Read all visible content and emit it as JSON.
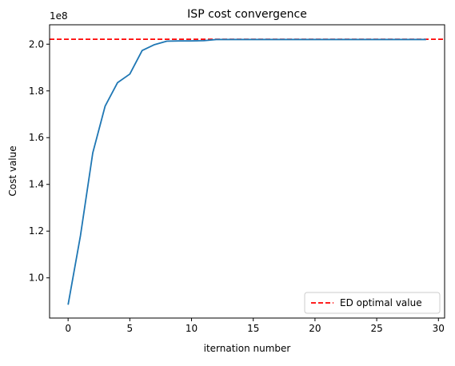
{
  "chart_data": {
    "type": "line",
    "title": "ISP cost convergence",
    "xlabel": "iternation number",
    "ylabel": "Cost value",
    "y_scale_text": "1e8",
    "xlim": [
      -1.5,
      30.5
    ],
    "ylim": [
      0.828,
      2.083
    ],
    "x_ticks": [
      0,
      5,
      10,
      15,
      20,
      25,
      30
    ],
    "y_ticks": [
      1.0,
      1.2,
      1.4,
      1.6,
      1.8,
      2.0
    ],
    "y_tick_labels": [
      "1.0",
      "1.2",
      "1.4",
      "1.6",
      "1.8",
      "2.0"
    ],
    "x_tick_labels": [
      "0",
      "5",
      "10",
      "15",
      "20",
      "25",
      "30"
    ],
    "grid": false,
    "legend_position": "bottom-right",
    "series": [
      {
        "color": "#1f77b4",
        "style": "solid",
        "x": [
          0,
          1,
          2,
          3,
          4,
          5,
          6,
          7,
          8,
          9,
          10,
          11,
          12,
          13,
          14,
          15,
          16,
          17,
          18,
          19,
          20,
          21,
          22,
          23,
          24,
          25,
          26,
          27,
          28,
          29
        ],
        "y": [
          0.885,
          1.18,
          1.535,
          1.735,
          1.835,
          1.872,
          1.973,
          1.998,
          2.013,
          2.014,
          2.014,
          2.015,
          2.02,
          2.02,
          2.02,
          2.02,
          2.02,
          2.02,
          2.02,
          2.02,
          2.02,
          2.02,
          2.02,
          2.02,
          2.02,
          2.02,
          2.02,
          2.02,
          2.02,
          2.02
        ]
      }
    ],
    "reference_lines": [
      {
        "name": "ED optimal value",
        "orientation": "horizontal",
        "y": 2.021,
        "color": "#ff0000",
        "style": "dashed"
      }
    ]
  }
}
